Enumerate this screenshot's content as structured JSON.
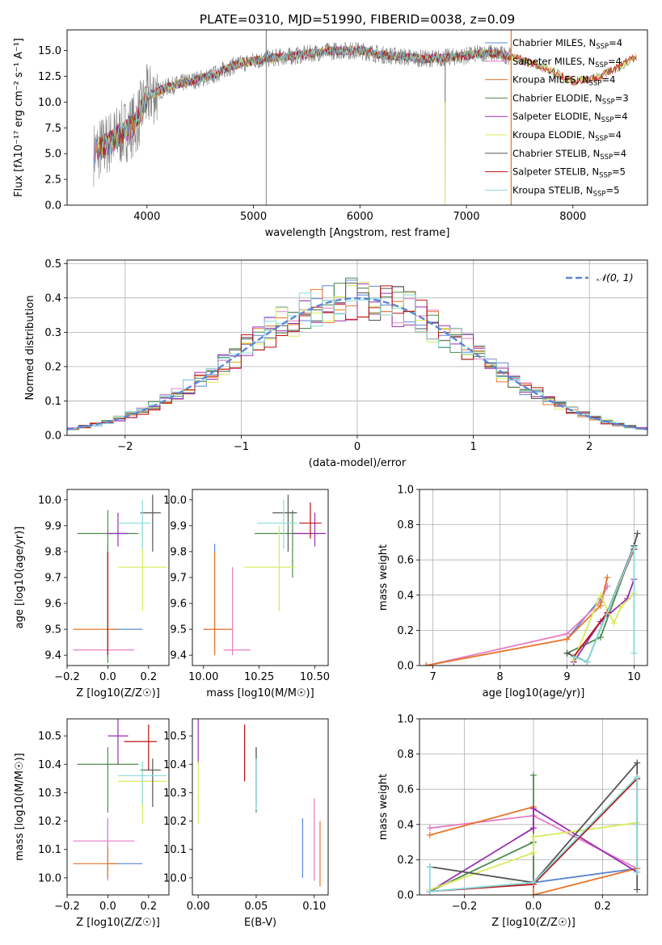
{
  "figure": {
    "title": "PLATE=0310, MJD=51990, FIBERID=0038, z=0.09"
  },
  "colors": {
    "Chabrier MILES": "#5b86d6",
    "Salpeter MILES": "#e77cc6",
    "Kroupa MILES": "#e5762a",
    "Chabrier ELODIE": "#4f8a4f",
    "Salpeter ELODIE": "#9a2db0",
    "Kroupa ELODIE": "#d8eb5a",
    "Chabrier STELIB": "#555555",
    "Salpeter STELIB": "#bb1111",
    "Kroupa STELIB": "#86dcdc",
    "data": "#808080",
    "normal": "#5b86d6",
    "grid": "#b0b0b0"
  },
  "chart_data": [
    {
      "id": "spectrum",
      "type": "line",
      "xlabel": "wavelength [Angstrom, rest frame]",
      "ylabel": "Flux [fλ10⁻¹⁷ erg cm⁻² s⁻¹ A⁻¹]",
      "xlim": [
        3250,
        8700
      ],
      "ylim": [
        0,
        17
      ],
      "xticks": [
        4000,
        5000,
        6000,
        7000,
        8000
      ],
      "yticks": [
        0.0,
        2.5,
        5.0,
        7.5,
        10.0,
        12.5,
        15.0
      ],
      "grid": false,
      "legend_position": "upper right",
      "legend": [
        "Chabrier MILES, N_SSP=4",
        "Salpeter MILES, N_SSP=4",
        "Kroupa MILES, N_SSP=4",
        "Chabrier ELODIE, N_SSP=3",
        "Salpeter ELODIE, N_SSP=4",
        "Kroupa ELODIE, N_SSP=4",
        "Chabrier STELIB, N_SSP=4",
        "Salpeter STELIB, N_SSP=5",
        "Kroupa STELIB, N_SSP=5"
      ],
      "continuum": {
        "x": [
          3500,
          3700,
          3900,
          4000,
          4200,
          4400,
          4600,
          4800,
          5000,
          5200,
          5400,
          5600,
          5800,
          6000,
          6200,
          6400,
          6600,
          6800,
          7000,
          7200,
          7400,
          7600,
          7800,
          8000,
          8200,
          8400,
          8600
        ],
        "y": [
          5.0,
          6.5,
          8.0,
          10.5,
          11.5,
          12.0,
          12.5,
          13.5,
          14.0,
          14.3,
          14.5,
          14.8,
          15.0,
          15.0,
          14.6,
          14.4,
          14.2,
          14.3,
          14.5,
          14.8,
          14.5,
          13.8,
          13.0,
          12.0,
          12.3,
          13.2,
          14.5
        ]
      }
    },
    {
      "id": "residuals",
      "type": "line",
      "xlabel": "(data-model)/error",
      "ylabel": "Normed distribution",
      "xlim": [
        -2.5,
        2.5
      ],
      "ylim": [
        0,
        0.51
      ],
      "xticks": [
        -2,
        -1,
        0,
        1,
        2
      ],
      "yticks": [
        0.0,
        0.1,
        0.2,
        0.3,
        0.4,
        0.5
      ],
      "grid": true,
      "legend_position": "upper right",
      "legend": [
        "𝒩(0, 1)"
      ],
      "histogram_bin_width": 0.1
    },
    {
      "id": "z_age",
      "type": "scatter",
      "xlabel": "Z [log10(Z/Z☉)]",
      "ylabel": "age  [log10(age/yr)]",
      "xlim": [
        -0.2,
        0.3
      ],
      "ylim": [
        9.36,
        10.04
      ],
      "xticks": [
        -0.2,
        0.0,
        0.2
      ],
      "yticks": [
        9.4,
        9.5,
        9.6,
        9.7,
        9.8,
        9.9,
        10.0
      ],
      "points": [
        {
          "model": "Chabrier MILES",
          "x": 0.0,
          "y": 9.5,
          "xerr": [
            0.0,
            0.17
          ],
          "yerr": [
            0.1,
            0.33
          ]
        },
        {
          "model": "Salpeter MILES",
          "x": 0.0,
          "y": 9.42,
          "xerr": [
            0.17,
            0.13
          ],
          "yerr": [
            0.02,
            0.38
          ]
        },
        {
          "model": "Kroupa MILES",
          "x": 0.0,
          "y": 9.5,
          "xerr": [
            0.17,
            0.05
          ],
          "yerr": [
            0.1,
            0.3
          ]
        },
        {
          "model": "Chabrier ELODIE",
          "x": 0.0,
          "y": 9.87,
          "xerr": [
            0.15,
            0.15
          ],
          "yerr": [
            0.5,
            0.09
          ]
        },
        {
          "model": "Salpeter ELODIE",
          "x": 0.05,
          "y": 9.87,
          "xerr": [
            0.05,
            0.05
          ],
          "yerr": [
            0.05,
            0.08
          ]
        },
        {
          "model": "Kroupa ELODIE",
          "x": 0.17,
          "y": 9.74,
          "xerr": [
            0.12,
            0.12
          ],
          "yerr": [
            0.17,
            0.16
          ]
        },
        {
          "model": "Chabrier STELIB",
          "x": 0.22,
          "y": 9.95,
          "xerr": [
            0.06,
            0.04
          ],
          "yerr": [
            0.15,
            0.07
          ]
        },
        {
          "model": "Salpeter STELIB",
          "x": 0.0,
          "y": 9.5,
          "xerr": [
            0.0,
            0.0
          ],
          "yerr": [
            0.1,
            0.3
          ]
        },
        {
          "model": "Kroupa STELIB",
          "x": 0.17,
          "y": 9.91,
          "xerr": [
            0.12,
            0.04
          ],
          "yerr": [
            0.1,
            0.09
          ]
        }
      ]
    },
    {
      "id": "mass_age",
      "type": "scatter",
      "xlabel": "mass [log10(M/M☉)]",
      "ylabel": "",
      "xlim": [
        9.95,
        10.56
      ],
      "ylim": [
        9.36,
        10.04
      ],
      "xticks": [
        10.0,
        10.25,
        10.5
      ],
      "tick_labels": [
        "10.00",
        "10.25",
        "10.50"
      ],
      "yticks": [
        9.4,
        9.5,
        9.6,
        9.7,
        9.8,
        9.9,
        10.0
      ],
      "points": [
        {
          "model": "Chabrier MILES",
          "x": 10.05,
          "y": 9.5,
          "xerr": [
            0.05,
            0.05
          ],
          "yerr": [
            0.1,
            0.33
          ]
        },
        {
          "model": "Salpeter MILES",
          "x": 10.13,
          "y": 9.42,
          "xerr": [
            0.04,
            0.08
          ],
          "yerr": [
            0.02,
            0.32
          ]
        },
        {
          "model": "Kroupa MILES",
          "x": 10.05,
          "y": 9.5,
          "xerr": [
            0.05,
            0.08
          ],
          "yerr": [
            0.1,
            0.3
          ]
        },
        {
          "model": "Chabrier ELODIE",
          "x": 10.4,
          "y": 9.87,
          "xerr": [
            0.17,
            0.12
          ],
          "yerr": [
            0.17,
            0.09
          ]
        },
        {
          "model": "Salpeter ELODIE",
          "x": 10.5,
          "y": 9.87,
          "xerr": [
            0.1,
            0.05
          ],
          "yerr": [
            0.05,
            0.08
          ]
        },
        {
          "model": "Kroupa ELODIE",
          "x": 10.34,
          "y": 9.74,
          "xerr": [
            0.16,
            0.07
          ],
          "yerr": [
            0.17,
            0.16
          ]
        },
        {
          "model": "Chabrier STELIB",
          "x": 10.38,
          "y": 9.95,
          "xerr": [
            0.07,
            0.04
          ],
          "yerr": [
            0.15,
            0.07
          ]
        },
        {
          "model": "Salpeter STELIB",
          "x": 10.48,
          "y": 9.91,
          "xerr": [
            0.05,
            0.05
          ],
          "yerr": [
            0.06,
            0.08
          ]
        },
        {
          "model": "Kroupa STELIB",
          "x": 10.36,
          "y": 9.91,
          "xerr": [
            0.12,
            0.06
          ],
          "yerr": [
            0.1,
            0.09
          ]
        }
      ]
    },
    {
      "id": "age_weight",
      "type": "line",
      "xlabel": "age  [log10(age/yr)]",
      "ylabel": "mass weight",
      "xlim": [
        6.8,
        10.2
      ],
      "ylim": [
        0,
        1
      ],
      "xticks": [
        7,
        8,
        9,
        10
      ],
      "yticks": [
        0.0,
        0.2,
        0.4,
        0.6,
        0.8,
        1.0
      ],
      "tick_labels_y": [
        "0.0",
        "0.2",
        "0.4",
        "0.6",
        "0.8",
        "1.0"
      ],
      "grid": true,
      "series": [
        {
          "model": "Chabrier MILES",
          "x": [
            9.0,
            9.5,
            9.6
          ],
          "y": [
            0.15,
            0.38,
            0.45
          ]
        },
        {
          "model": "Salpeter MILES",
          "x": [
            6.9,
            9.0,
            9.5,
            9.6
          ],
          "y": [
            0.0,
            0.18,
            0.36,
            0.45
          ]
        },
        {
          "model": "Kroupa MILES",
          "x": [
            6.9,
            9.0,
            9.5,
            9.6
          ],
          "y": [
            0.0,
            0.15,
            0.34,
            0.5
          ]
        },
        {
          "model": "Chabrier ELODIE",
          "x": [
            9.0,
            9.5,
            10.0
          ],
          "y": [
            0.07,
            0.16,
            0.68
          ]
        },
        {
          "model": "Salpeter ELODIE",
          "x": [
            9.1,
            9.5,
            9.9,
            10.0
          ],
          "y": [
            0.02,
            0.25,
            0.38,
            0.49
          ]
        },
        {
          "model": "Kroupa ELODIE",
          "x": [
            9.1,
            9.5,
            9.7,
            9.8,
            10.0
          ],
          "y": [
            0.03,
            0.4,
            0.24,
            0.33,
            0.41
          ]
        },
        {
          "model": "Chabrier STELIB",
          "x": [
            9.0,
            9.3,
            10.0,
            10.05
          ],
          "y": [
            0.07,
            0.02,
            0.68,
            0.75
          ]
        },
        {
          "model": "Salpeter STELIB",
          "x": [
            9.1,
            9.6,
            10.0
          ],
          "y": [
            0.05,
            0.3,
            0.66
          ]
        },
        {
          "model": "Kroupa STELIB",
          "x": [
            9.1,
            9.3,
            10.0,
            10.0
          ],
          "y": [
            0.05,
            0.02,
            0.67,
            0.07
          ]
        }
      ]
    },
    {
      "id": "z_mass",
      "type": "scatter",
      "xlabel": "Z [log10(Z/Z☉)]",
      "ylabel": "mass [log10(M/M☉)]",
      "xlim": [
        -0.2,
        0.3
      ],
      "ylim": [
        9.94,
        10.56
      ],
      "xticks": [
        -0.2,
        0.0,
        0.2
      ],
      "yticks": [
        10.0,
        10.1,
        10.2,
        10.3,
        10.4,
        10.5
      ],
      "points": [
        {
          "model": "Chabrier MILES",
          "x": 0.0,
          "y": 10.05,
          "xerr": [
            0.0,
            0.17
          ],
          "yerr": [
            0.05,
            0.16
          ]
        },
        {
          "model": "Salpeter MILES",
          "x": 0.0,
          "y": 10.13,
          "xerr": [
            0.17,
            0.13
          ],
          "yerr": [
            0.14,
            0.08
          ]
        },
        {
          "model": "Kroupa MILES",
          "x": 0.0,
          "y": 10.05,
          "xerr": [
            0.17,
            0.05
          ],
          "yerr": [
            0.05,
            0.06
          ]
        },
        {
          "model": "Chabrier ELODIE",
          "x": 0.0,
          "y": 10.4,
          "xerr": [
            0.15,
            0.15
          ],
          "yerr": [
            0.17,
            0.06
          ]
        },
        {
          "model": "Salpeter ELODIE",
          "x": 0.05,
          "y": 10.5,
          "xerr": [
            0.05,
            0.05
          ],
          "yerr": [
            0.1,
            0.06
          ]
        },
        {
          "model": "Kroupa ELODIE",
          "x": 0.17,
          "y": 10.34,
          "xerr": [
            0.12,
            0.12
          ],
          "yerr": [
            0.15,
            0.07
          ]
        },
        {
          "model": "Chabrier STELIB",
          "x": 0.22,
          "y": 10.38,
          "xerr": [
            0.06,
            0.04
          ],
          "yerr": [
            0.13,
            0.04
          ]
        },
        {
          "model": "Salpeter STELIB",
          "x": 0.2,
          "y": 10.48,
          "xerr": [
            0.12,
            0.04
          ],
          "yerr": [
            0.1,
            0.06
          ]
        },
        {
          "model": "Kroupa STELIB",
          "x": 0.17,
          "y": 10.36,
          "xerr": [
            0.12,
            0.12
          ],
          "yerr": [
            0.1,
            0.05
          ]
        }
      ]
    },
    {
      "id": "ebv_mass",
      "type": "scatter",
      "xlabel": "E(B-V)",
      "ylabel": "",
      "xlim": [
        -0.005,
        0.112
      ],
      "ylim": [
        9.94,
        10.56
      ],
      "xticks": [
        0.0,
        0.05,
        0.1
      ],
      "tick_labels": [
        "0.00",
        "0.05",
        "0.10"
      ],
      "yticks": [
        10.0,
        10.1,
        10.2,
        10.3,
        10.4,
        10.5
      ],
      "points": [
        {
          "model": "Chabrier MILES",
          "x": 0.09,
          "y": 10.05,
          "yerr": [
            0.05,
            0.16
          ]
        },
        {
          "model": "Salpeter MILES",
          "x": 0.1,
          "y": 10.13,
          "yerr": [
            0.14,
            0.15
          ]
        },
        {
          "model": "Kroupa MILES",
          "x": 0.105,
          "y": 10.05,
          "yerr": [
            0.08,
            0.15
          ]
        },
        {
          "model": "Chabrier ELODIE",
          "x": 0.05,
          "y": 10.4,
          "yerr": [
            0.17,
            0.06
          ]
        },
        {
          "model": "Salpeter ELODIE",
          "x": 0.0,
          "y": 10.5,
          "yerr": [
            0.1,
            0.06
          ]
        },
        {
          "model": "Kroupa ELODIE",
          "x": 0.0,
          "y": 10.34,
          "yerr": [
            0.15,
            0.07
          ]
        },
        {
          "model": "Chabrier STELIB",
          "x": 0.05,
          "y": 10.38,
          "yerr": [
            0.12,
            0.08
          ]
        },
        {
          "model": "Salpeter STELIB",
          "x": 0.04,
          "y": 10.48,
          "yerr": [
            0.14,
            0.06
          ]
        },
        {
          "model": "Kroupa STELIB",
          "x": 0.05,
          "y": 10.36,
          "yerr": [
            0.12,
            0.06
          ]
        }
      ]
    },
    {
      "id": "z_weight",
      "type": "line",
      "xlabel": "Z [log10(Z/Z☉)]",
      "ylabel": "mass weight",
      "xlim": [
        -0.33,
        0.33
      ],
      "ylim": [
        0,
        1
      ],
      "xticks": [
        -0.2,
        0.0,
        0.2
      ],
      "yticks": [
        0.0,
        0.2,
        0.4,
        0.6,
        0.8,
        1.0
      ],
      "tick_labels_y": [
        "0.0",
        "0.2",
        "0.4",
        "0.6",
        "0.8",
        "1.0"
      ],
      "grid": true,
      "series": [
        {
          "model": "Chabrier MILES",
          "x": [
            -0.3,
            0.0,
            0.3
          ],
          "y": [
            0.02,
            0.07,
            0.15
          ]
        },
        {
          "model": "Salpeter MILES",
          "x": [
            -0.3,
            0.0,
            0.3
          ],
          "y": [
            0.38,
            0.45,
            0.15
          ]
        },
        {
          "model": "Kroupa MILES",
          "x": [
            -0.3,
            0.0,
            0.0,
            0.3
          ],
          "y": [
            0.34,
            0.5,
            0.0,
            0.15
          ]
        },
        {
          "model": "Chabrier ELODIE",
          "x": [
            -0.3,
            0.0,
            0.0,
            0.0
          ],
          "y": [
            0.02,
            0.3,
            0.68,
            0.07
          ]
        },
        {
          "model": "Salpeter ELODIE",
          "x": [
            -0.3,
            0.0,
            0.0,
            0.3
          ],
          "y": [
            0.02,
            0.38,
            0.49,
            0.13
          ]
        },
        {
          "model": "Kroupa ELODIE",
          "x": [
            -0.3,
            0.0,
            0.0,
            0.3
          ],
          "y": [
            0.03,
            0.24,
            0.33,
            0.41
          ]
        },
        {
          "model": "Chabrier STELIB",
          "x": [
            -0.3,
            0.0,
            0.3,
            0.3
          ],
          "y": [
            0.16,
            0.07,
            0.75,
            0.03
          ]
        },
        {
          "model": "Salpeter STELIB",
          "x": [
            -0.3,
            0.0,
            0.3
          ],
          "y": [
            0.02,
            0.06,
            0.66
          ]
        },
        {
          "model": "Kroupa STELIB",
          "x": [
            -0.3,
            -0.3,
            0.0,
            0.3,
            0.3
          ],
          "y": [
            0.16,
            0.02,
            0.07,
            0.67,
            0.13
          ]
        }
      ]
    }
  ]
}
